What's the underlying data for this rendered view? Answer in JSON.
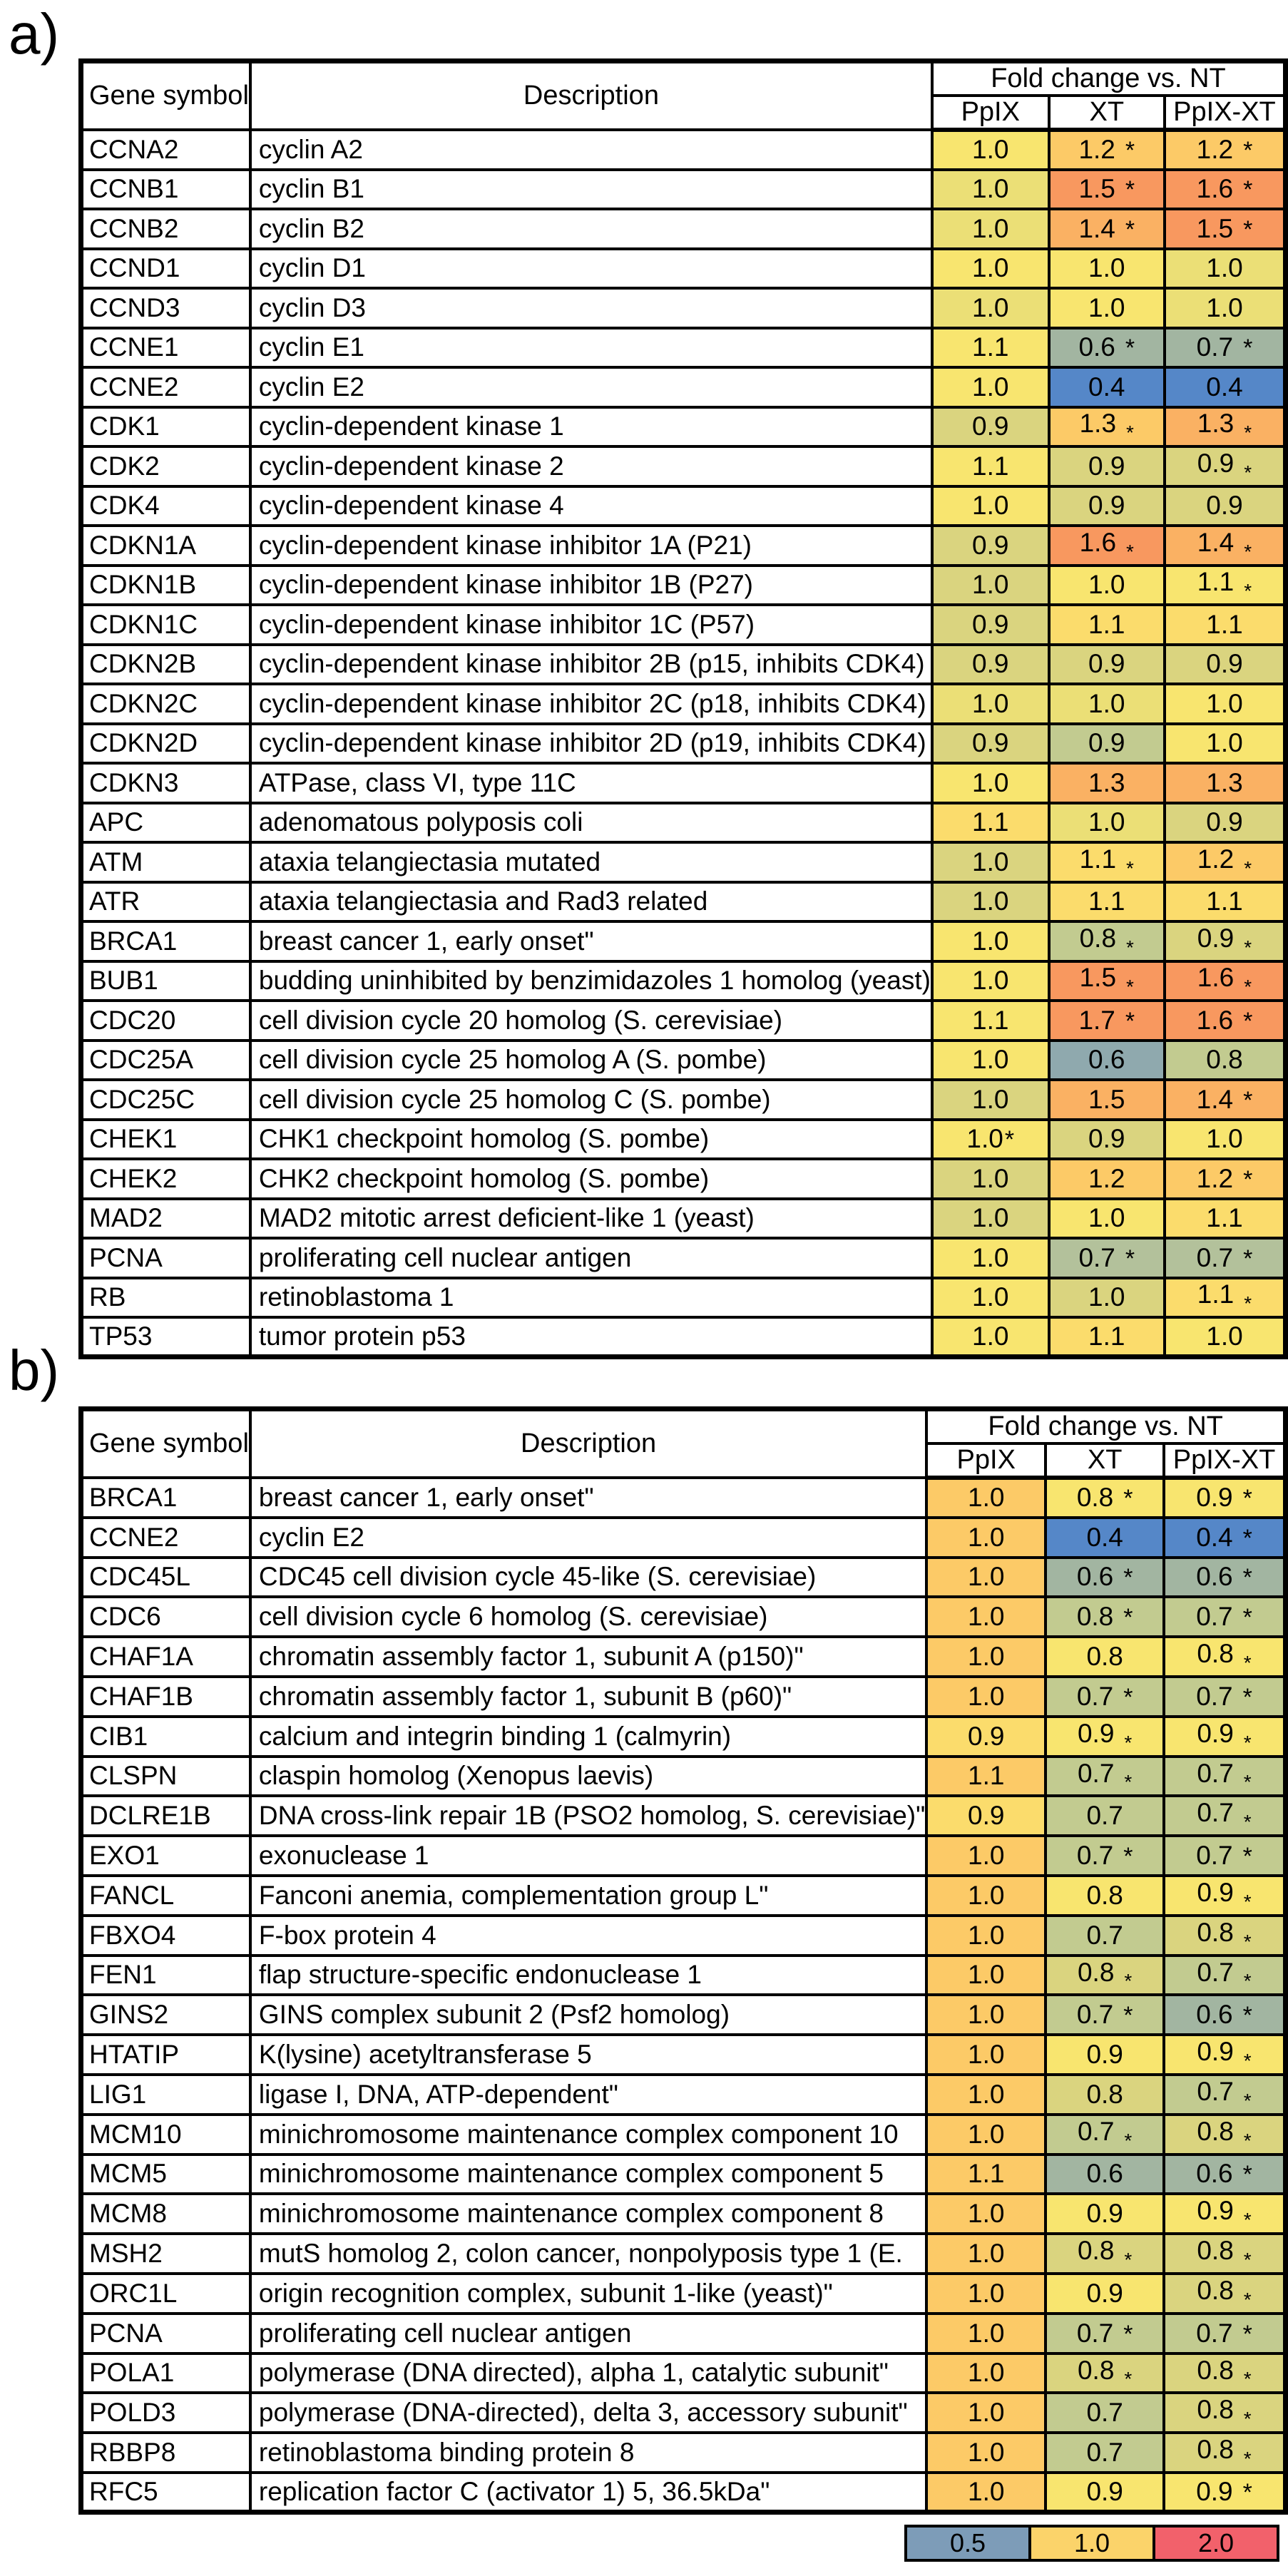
{
  "figure": {
    "panel_a_label": "a)",
    "panel_b_label": "b)"
  },
  "columns": {
    "gene": "Gene symbol",
    "description": "Description",
    "fold_change": "Fold change vs. NT",
    "sub": [
      "PpIX",
      "XT",
      "PpIX-XT"
    ]
  },
  "palette": {
    "y": "#F8E56F",
    "yg": "#EBDF76",
    "ol": "#DAD47F",
    "og": "#C2CB90",
    "gg": "#B3C19B",
    "tg": "#A2B5A1",
    "tb": "#8FA9AE",
    "bl": "#5587C8",
    "yo": "#FBDC6C",
    "lo": "#FCCA67",
    "mo": "#FAB163",
    "so": "#F8985F"
  },
  "star_legend": {
    "h": "raised asterisk",
    "l": "lowered small asterisk",
    "ht": "raised asterisk tight to number"
  },
  "panel_a": {
    "rows": [
      [
        "CCNA2",
        "cyclin A2",
        [
          "1.0",
          "",
          "y"
        ],
        [
          "1.2",
          "h",
          "lo"
        ],
        [
          "1.2",
          "h",
          "lo"
        ]
      ],
      [
        "CCNB1",
        "cyclin B1",
        [
          "1.0",
          "",
          "yg"
        ],
        [
          "1.5",
          "h",
          "so"
        ],
        [
          "1.6",
          "h",
          "so"
        ]
      ],
      [
        "CCNB2",
        "cyclin B2",
        [
          "1.0",
          "",
          "yg"
        ],
        [
          "1.4",
          "h",
          "mo"
        ],
        [
          "1.5",
          "h",
          "so"
        ]
      ],
      [
        "CCND1",
        "cyclin D1",
        [
          "1.0",
          "",
          "y"
        ],
        [
          "1.0",
          "",
          "y"
        ],
        [
          "1.0",
          "",
          "yg"
        ]
      ],
      [
        "CCND3",
        "cyclin D3",
        [
          "1.0",
          "",
          "yg"
        ],
        [
          "1.0",
          "",
          "y"
        ],
        [
          "1.0",
          "",
          "yg"
        ]
      ],
      [
        "CCNE1",
        "cyclin E1",
        [
          "1.1",
          "",
          "y"
        ],
        [
          "0.6",
          "h",
          "tg"
        ],
        [
          "0.7",
          "h",
          "tg"
        ]
      ],
      [
        "CCNE2",
        "cyclin E2",
        [
          "1.0",
          "",
          "y"
        ],
        [
          "0.4",
          "",
          "bl"
        ],
        [
          "0.4",
          "",
          "bl"
        ]
      ],
      [
        "CDK1",
        "cyclin-dependent kinase 1",
        [
          "0.9",
          "",
          "ol"
        ],
        [
          "1.3",
          "l",
          "lo"
        ],
        [
          "1.3",
          "l",
          "mo"
        ]
      ],
      [
        "CDK2",
        "cyclin-dependent kinase 2",
        [
          "1.1",
          "",
          "y"
        ],
        [
          "0.9",
          "",
          "ol"
        ],
        [
          "0.9",
          "l",
          "ol"
        ]
      ],
      [
        "CDK4",
        "cyclin-dependent kinase 4",
        [
          "1.0",
          "",
          "y"
        ],
        [
          "0.9",
          "",
          "ol"
        ],
        [
          "0.9",
          "",
          "ol"
        ]
      ],
      [
        "CDKN1A",
        "cyclin-dependent kinase inhibitor 1A (P21)",
        [
          "0.9",
          "",
          "ol"
        ],
        [
          "1.6",
          "l",
          "so"
        ],
        [
          "1.4",
          "l",
          "mo"
        ]
      ],
      [
        "CDKN1B",
        "cyclin-dependent kinase inhibitor 1B (P27)",
        [
          "1.0",
          "",
          "ol"
        ],
        [
          "1.0",
          "",
          "y"
        ],
        [
          "1.1",
          "l",
          "y"
        ]
      ],
      [
        "CDKN1C",
        "cyclin-dependent kinase inhibitor 1C (P57)",
        [
          "0.9",
          "",
          "ol"
        ],
        [
          "1.1",
          "",
          "yo"
        ],
        [
          "1.1",
          "",
          "yo"
        ]
      ],
      [
        "CDKN2B",
        "cyclin-dependent kinase inhibitor 2B (p15, inhibits CDK4)",
        [
          "0.9",
          "",
          "ol"
        ],
        [
          "0.9",
          "",
          "ol"
        ],
        [
          "0.9",
          "",
          "ol"
        ]
      ],
      [
        "CDKN2C",
        "cyclin-dependent kinase inhibitor 2C (p18, inhibits CDK4)",
        [
          "1.0",
          "",
          "yg"
        ],
        [
          "1.0",
          "",
          "yg"
        ],
        [
          "1.0",
          "",
          "y"
        ]
      ],
      [
        "CDKN2D",
        "cyclin-dependent kinase inhibitor 2D (p19, inhibits CDK4)",
        [
          "0.9",
          "",
          "ol"
        ],
        [
          "0.9",
          "",
          "og"
        ],
        [
          "1.0",
          "",
          "y"
        ]
      ],
      [
        "CDKN3",
        "ATPase, class VI, type 11C",
        [
          "1.0",
          "",
          "y"
        ],
        [
          "1.3",
          "",
          "mo"
        ],
        [
          "1.3",
          "",
          "mo"
        ]
      ],
      [
        "APC",
        "adenomatous polyposis coli",
        [
          "1.1",
          "",
          "yo"
        ],
        [
          "1.0",
          "",
          "yg"
        ],
        [
          "0.9",
          "",
          "ol"
        ]
      ],
      [
        "ATM",
        "ataxia telangiectasia mutated",
        [
          "1.0",
          "",
          "ol"
        ],
        [
          "1.1",
          "l",
          "yo"
        ],
        [
          "1.2",
          "l",
          "lo"
        ]
      ],
      [
        "ATR",
        "ataxia telangiectasia and Rad3 related",
        [
          "1.0",
          "",
          "ol"
        ],
        [
          "1.1",
          "",
          "yo"
        ],
        [
          "1.1",
          "",
          "yo"
        ]
      ],
      [
        "BRCA1",
        "breast cancer 1, early onset\"",
        [
          "1.0",
          "",
          "y"
        ],
        [
          "0.8",
          "l",
          "og"
        ],
        [
          "0.9",
          "l",
          "ol"
        ]
      ],
      [
        "BUB1",
        "budding uninhibited by benzimidazoles 1 homolog (yeast)",
        [
          "1.0",
          "",
          "y"
        ],
        [
          "1.5",
          "l",
          "so"
        ],
        [
          "1.6",
          "l",
          "so"
        ]
      ],
      [
        "CDC20",
        "cell division cycle 20 homolog (S. cerevisiae)",
        [
          "1.1",
          "",
          "y"
        ],
        [
          "1.7",
          "h",
          "so"
        ],
        [
          "1.6",
          "h",
          "so"
        ]
      ],
      [
        "CDC25A",
        "cell division cycle 25 homolog A (S. pombe)",
        [
          "1.0",
          "",
          "y"
        ],
        [
          "0.6",
          "",
          "tb"
        ],
        [
          "0.8",
          "",
          "og"
        ]
      ],
      [
        "CDC25C",
        "cell division cycle 25 homolog C (S. pombe)",
        [
          "1.0",
          "",
          "ol"
        ],
        [
          "1.5",
          "",
          "mo"
        ],
        [
          "1.4",
          "h",
          "mo"
        ]
      ],
      [
        "CHEK1",
        "CHK1 checkpoint homolog (S. pombe)",
        [
          "1.0",
          "ht",
          "y"
        ],
        [
          "0.9",
          "",
          "ol"
        ],
        [
          "1.0",
          "",
          "y"
        ]
      ],
      [
        "CHEK2",
        "CHK2 checkpoint homolog (S. pombe)",
        [
          "1.0",
          "",
          "ol"
        ],
        [
          "1.2",
          "",
          "lo"
        ],
        [
          "1.2",
          "h",
          "lo"
        ]
      ],
      [
        "MAD2",
        "MAD2 mitotic arrest deficient-like 1 (yeast)",
        [
          "1.0",
          "",
          "ol"
        ],
        [
          "1.0",
          "",
          "y"
        ],
        [
          "1.1",
          "",
          "yo"
        ]
      ],
      [
        "PCNA",
        "proliferating cell nuclear antigen",
        [
          "1.0",
          "",
          "y"
        ],
        [
          "0.7",
          "h",
          "gg"
        ],
        [
          "0.7",
          "h",
          "gg"
        ]
      ],
      [
        "RB",
        "retinoblastoma 1",
        [
          "1.0",
          "",
          "y"
        ],
        [
          "1.0",
          "",
          "ol"
        ],
        [
          "1.1",
          "l",
          "yo"
        ]
      ],
      [
        "TP53",
        "tumor protein p53",
        [
          "1.0",
          "",
          "y"
        ],
        [
          "1.1",
          "",
          "yo"
        ],
        [
          "1.0",
          "",
          "y"
        ]
      ]
    ]
  },
  "panel_b": {
    "rows": [
      [
        "BRCA1",
        "breast cancer 1, early onset\"",
        [
          "1.0",
          "",
          "lo"
        ],
        [
          "0.8",
          "h",
          "y"
        ],
        [
          "0.9",
          "h",
          "y"
        ]
      ],
      [
        "CCNE2",
        "cyclin E2",
        [
          "1.0",
          "",
          "lo"
        ],
        [
          "0.4",
          "",
          "bl"
        ],
        [
          "0.4",
          "h",
          "bl"
        ]
      ],
      [
        "CDC45L",
        "CDC45 cell division cycle 45-like (S. cerevisiae)",
        [
          "1.0",
          "",
          "lo"
        ],
        [
          "0.6",
          "h",
          "tg"
        ],
        [
          "0.6",
          "h",
          "tg"
        ]
      ],
      [
        "CDC6",
        "cell division cycle 6 homolog (S. cerevisiae)",
        [
          "1.0",
          "",
          "lo"
        ],
        [
          "0.8",
          "h",
          "og"
        ],
        [
          "0.7",
          "h",
          "og"
        ]
      ],
      [
        "CHAF1A",
        "chromatin assembly factor 1, subunit A (p150)\"",
        [
          "1.0",
          "",
          "lo"
        ],
        [
          "0.8",
          "",
          "y"
        ],
        [
          "0.8",
          "l",
          "y"
        ]
      ],
      [
        "CHAF1B",
        "chromatin assembly factor 1, subunit B (p60)\"",
        [
          "1.0",
          "",
          "lo"
        ],
        [
          "0.7",
          "h",
          "og"
        ],
        [
          "0.7",
          "h",
          "og"
        ]
      ],
      [
        "CIB1",
        "calcium and integrin binding 1 (calmyrin)",
        [
          "0.9",
          "",
          "yo"
        ],
        [
          "0.9",
          "l",
          "y"
        ],
        [
          "0.9",
          "l",
          "y"
        ]
      ],
      [
        "CLSPN",
        "claspin homolog (Xenopus laevis)",
        [
          "1.1",
          "",
          "lo"
        ],
        [
          "0.7",
          "l",
          "og"
        ],
        [
          "0.7",
          "l",
          "og"
        ]
      ],
      [
        "DCLRE1B",
        "DNA cross-link repair 1B (PSO2 homolog, S. cerevisiae)\"",
        [
          "0.9",
          "",
          "yo"
        ],
        [
          "0.7",
          "",
          "og"
        ],
        [
          "0.7",
          "l",
          "og"
        ]
      ],
      [
        "EXO1",
        "exonuclease 1",
        [
          "1.0",
          "",
          "lo"
        ],
        [
          "0.7",
          "h",
          "og"
        ],
        [
          "0.7",
          "h",
          "og"
        ]
      ],
      [
        "FANCL",
        "Fanconi anemia, complementation group L\"",
        [
          "1.0",
          "",
          "lo"
        ],
        [
          "0.8",
          "",
          "y"
        ],
        [
          "0.9",
          "l",
          "y"
        ]
      ],
      [
        "FBXO4",
        "F-box protein 4",
        [
          "1.0",
          "",
          "lo"
        ],
        [
          "0.7",
          "",
          "og"
        ],
        [
          "0.8",
          "l",
          "ol"
        ]
      ],
      [
        "FEN1",
        "flap structure-specific endonuclease 1",
        [
          "1.0",
          "",
          "lo"
        ],
        [
          "0.8",
          "l",
          "ol"
        ],
        [
          "0.7",
          "l",
          "og"
        ]
      ],
      [
        "GINS2",
        "GINS complex subunit 2 (Psf2 homolog)",
        [
          "1.0",
          "",
          "lo"
        ],
        [
          "0.7",
          "h",
          "og"
        ],
        [
          "0.6",
          "h",
          "tg"
        ]
      ],
      [
        "HTATIP",
        "K(lysine) acetyltransferase 5",
        [
          "1.0",
          "",
          "lo"
        ],
        [
          "0.9",
          "",
          "y"
        ],
        [
          "0.9",
          "l",
          "y"
        ]
      ],
      [
        "LIG1",
        "ligase I, DNA, ATP-dependent\"",
        [
          "1.0",
          "",
          "lo"
        ],
        [
          "0.8",
          "",
          "ol"
        ],
        [
          "0.7",
          "l",
          "og"
        ]
      ],
      [
        "MCM10",
        "minichromosome maintenance complex component 10",
        [
          "1.0",
          "",
          "lo"
        ],
        [
          "0.7",
          "l",
          "og"
        ],
        [
          "0.8",
          "l",
          "ol"
        ]
      ],
      [
        "MCM5",
        "minichromosome maintenance complex component 5",
        [
          "1.1",
          "",
          "lo"
        ],
        [
          "0.6",
          "",
          "tg"
        ],
        [
          "0.6",
          "h",
          "tg"
        ]
      ],
      [
        "MCM8",
        "minichromosome maintenance complex component 8",
        [
          "1.0",
          "",
          "lo"
        ],
        [
          "0.9",
          "",
          "y"
        ],
        [
          "0.9",
          "l",
          "y"
        ]
      ],
      [
        "MSH2",
        "mutS homolog 2, colon cancer, nonpolyposis type 1 (E.",
        [
          "1.0",
          "",
          "lo"
        ],
        [
          "0.8",
          "l",
          "ol"
        ],
        [
          "0.8",
          "l",
          "ol"
        ]
      ],
      [
        "ORC1L",
        "origin recognition complex, subunit 1-like (yeast)\"",
        [
          "1.0",
          "",
          "lo"
        ],
        [
          "0.9",
          "",
          "y"
        ],
        [
          "0.8",
          "l",
          "ol"
        ]
      ],
      [
        "PCNA",
        "proliferating cell nuclear antigen",
        [
          "1.0",
          "",
          "lo"
        ],
        [
          "0.7",
          "h",
          "og"
        ],
        [
          "0.7",
          "h",
          "og"
        ]
      ],
      [
        "POLA1",
        "polymerase (DNA directed), alpha 1, catalytic subunit\"",
        [
          "1.0",
          "",
          "lo"
        ],
        [
          "0.8",
          "l",
          "ol"
        ],
        [
          "0.8",
          "l",
          "ol"
        ]
      ],
      [
        "POLD3",
        "polymerase (DNA-directed), delta 3, accessory subunit\"",
        [
          "1.0",
          "",
          "lo"
        ],
        [
          "0.7",
          "",
          "og"
        ],
        [
          "0.8",
          "l",
          "ol"
        ]
      ],
      [
        "RBBP8",
        "retinoblastoma binding protein 8",
        [
          "1.0",
          "",
          "lo"
        ],
        [
          "0.7",
          "",
          "og"
        ],
        [
          "0.8",
          "l",
          "ol"
        ]
      ],
      [
        "RFC5",
        "replication factor C (activator 1) 5, 36.5kDa\"",
        [
          "1.0",
          "",
          "lo"
        ],
        [
          "0.9",
          "",
          "y"
        ],
        [
          "0.9",
          "h",
          "y"
        ]
      ]
    ]
  },
  "legend": {
    "items": [
      {
        "label": "0.5",
        "color": "#7D9CB8"
      },
      {
        "label": "1.0",
        "color": "#FBD36A"
      },
      {
        "label": "2.0",
        "color": "#F2616B"
      }
    ]
  }
}
